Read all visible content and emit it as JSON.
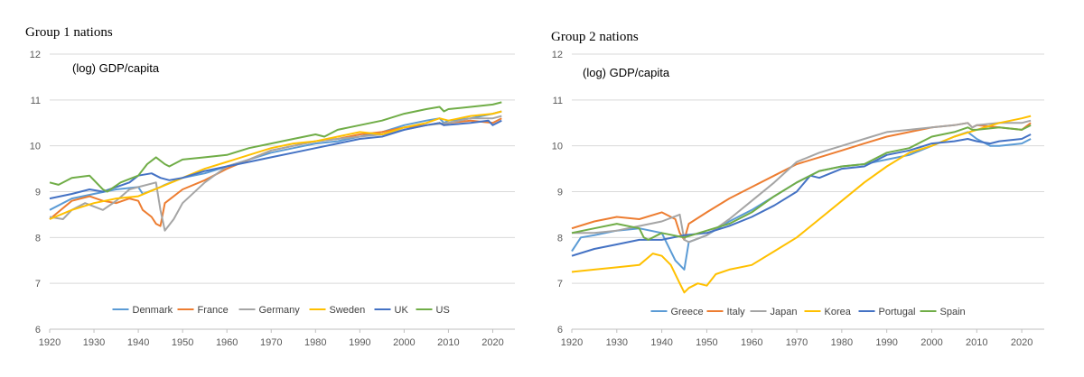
{
  "chart_data": [
    {
      "type": "line",
      "title": "Group 1 nations",
      "inner_label": "(log) GDP/capita",
      "xlabel": "",
      "ylabel": "",
      "xlim": [
        1920,
        2025
      ],
      "ylim": [
        6,
        12
      ],
      "x_ticks": [
        "1920",
        "1930",
        "1940",
        "1950",
        "1960",
        "1970",
        "1980",
        "1990",
        "2000",
        "2010",
        "2020"
      ],
      "y_ticks": [
        "6",
        "7",
        "8",
        "9",
        "10",
        "11",
        "12"
      ],
      "grid": true,
      "legend_position": "bottom",
      "series": [
        {
          "name": "Denmark",
          "color": "#5b9bd5",
          "x": [
            1920,
            1925,
            1930,
            1935,
            1940,
            1941,
            1945,
            1946,
            1950,
            1955,
            1960,
            1965,
            1970,
            1975,
            1980,
            1985,
            1990,
            1995,
            2000,
            2005,
            2008,
            2009,
            2010,
            2015,
            2020,
            2022
          ],
          "y": [
            8.6,
            8.85,
            8.95,
            9.05,
            9.1,
            8.95,
            9.1,
            9.15,
            9.3,
            9.4,
            9.55,
            9.7,
            9.85,
            9.95,
            10.05,
            10.1,
            10.2,
            10.3,
            10.45,
            10.55,
            10.6,
            10.5,
            10.55,
            10.6,
            10.7,
            10.75
          ]
        },
        {
          "name": "France",
          "color": "#ed7d31",
          "x": [
            1920,
            1925,
            1929,
            1932,
            1935,
            1938,
            1940,
            1941,
            1943,
            1944,
            1945,
            1946,
            1950,
            1955,
            1960,
            1965,
            1970,
            1975,
            1980,
            1985,
            1990,
            1995,
            2000,
            2005,
            2008,
            2009,
            2010,
            2015,
            2020,
            2022
          ],
          "y": [
            8.4,
            8.8,
            8.9,
            8.8,
            8.75,
            8.85,
            8.8,
            8.6,
            8.45,
            8.3,
            8.25,
            8.75,
            9.05,
            9.25,
            9.5,
            9.7,
            9.9,
            10.0,
            10.1,
            10.15,
            10.25,
            10.3,
            10.4,
            10.45,
            10.5,
            10.45,
            10.5,
            10.55,
            10.5,
            10.6
          ]
        },
        {
          "name": "Germany",
          "color": "#a5a5a5",
          "x": [
            1920,
            1923,
            1925,
            1928,
            1932,
            1935,
            1938,
            1940,
            1944,
            1945,
            1946,
            1948,
            1950,
            1955,
            1960,
            1965,
            1970,
            1975,
            1980,
            1985,
            1990,
            1995,
            2000,
            2005,
            2010,
            2015,
            2020,
            2022
          ],
          "y": [
            8.45,
            8.4,
            8.6,
            8.75,
            8.6,
            8.8,
            9.05,
            9.1,
            9.2,
            8.6,
            8.15,
            8.4,
            8.75,
            9.2,
            9.55,
            9.7,
            9.9,
            10.0,
            10.1,
            10.15,
            10.2,
            10.25,
            10.35,
            10.45,
            10.5,
            10.6,
            10.6,
            10.65
          ]
        },
        {
          "name": "Sweden",
          "color": "#ffc000",
          "x": [
            1920,
            1925,
            1930,
            1935,
            1940,
            1945,
            1950,
            1955,
            1960,
            1965,
            1970,
            1975,
            1980,
            1985,
            1990,
            1995,
            2000,
            2005,
            2008,
            2010,
            2015,
            2020,
            2022
          ],
          "y": [
            8.4,
            8.6,
            8.75,
            8.85,
            8.9,
            9.1,
            9.3,
            9.5,
            9.65,
            9.8,
            9.95,
            10.05,
            10.1,
            10.2,
            10.3,
            10.25,
            10.4,
            10.5,
            10.6,
            10.55,
            10.65,
            10.7,
            10.75
          ]
        },
        {
          "name": "UK",
          "color": "#4472c4",
          "x": [
            1920,
            1925,
            1929,
            1932,
            1935,
            1938,
            1940,
            1943,
            1945,
            1947,
            1950,
            1955,
            1960,
            1965,
            1970,
            1975,
            1980,
            1985,
            1990,
            1995,
            2000,
            2005,
            2008,
            2009,
            2015,
            2019,
            2020,
            2022
          ],
          "y": [
            8.85,
            8.95,
            9.05,
            9.0,
            9.1,
            9.2,
            9.35,
            9.4,
            9.3,
            9.25,
            9.3,
            9.45,
            9.55,
            9.65,
            9.75,
            9.85,
            9.95,
            10.05,
            10.15,
            10.2,
            10.35,
            10.45,
            10.5,
            10.45,
            10.5,
            10.55,
            10.45,
            10.55
          ]
        },
        {
          "name": "US",
          "color": "#70ad47",
          "x": [
            1920,
            1922,
            1925,
            1929,
            1932,
            1933,
            1936,
            1940,
            1942,
            1944,
            1946,
            1947,
            1950,
            1955,
            1960,
            1965,
            1970,
            1975,
            1980,
            1982,
            1985,
            1990,
            1995,
            2000,
            2005,
            2008,
            2009,
            2010,
            2015,
            2020,
            2022
          ],
          "y": [
            9.2,
            9.15,
            9.3,
            9.35,
            9.05,
            9.0,
            9.2,
            9.35,
            9.6,
            9.75,
            9.6,
            9.55,
            9.7,
            9.75,
            9.8,
            9.95,
            10.05,
            10.15,
            10.25,
            10.2,
            10.35,
            10.45,
            10.55,
            10.7,
            10.8,
            10.85,
            10.75,
            10.8,
            10.85,
            10.9,
            10.95
          ]
        }
      ]
    },
    {
      "type": "line",
      "title": "Group 2 nations",
      "inner_label": "(log) GDP/capita",
      "xlabel": "",
      "ylabel": "",
      "xlim": [
        1920,
        2025
      ],
      "ylim": [
        6,
        12
      ],
      "x_ticks": [
        "1920",
        "1930",
        "1940",
        "1950",
        "1960",
        "1970",
        "1980",
        "1990",
        "2000",
        "2010",
        "2020"
      ],
      "y_ticks": [
        "6",
        "7",
        "8",
        "9",
        "10",
        "11",
        "12"
      ],
      "grid": true,
      "legend_position": "bottom",
      "series": [
        {
          "name": "Greece",
          "color": "#5b9bd5",
          "x": [
            1920,
            1922,
            1925,
            1930,
            1935,
            1940,
            1943,
            1945,
            1946,
            1950,
            1955,
            1960,
            1965,
            1970,
            1975,
            1980,
            1985,
            1990,
            1995,
            2000,
            2005,
            2008,
            2010,
            2013,
            2015,
            2020,
            2022
          ],
          "y": [
            7.7,
            8.0,
            8.05,
            8.15,
            8.2,
            8.1,
            7.5,
            7.3,
            7.9,
            8.05,
            8.35,
            8.6,
            8.9,
            9.2,
            9.45,
            9.55,
            9.6,
            9.7,
            9.8,
            10.0,
            10.2,
            10.3,
            10.15,
            10.0,
            10.0,
            10.05,
            10.15
          ]
        },
        {
          "name": "Italy",
          "color": "#ed7d31",
          "x": [
            1920,
            1925,
            1930,
            1935,
            1940,
            1943,
            1944,
            1945,
            1946,
            1950,
            1955,
            1960,
            1965,
            1970,
            1975,
            1980,
            1985,
            1990,
            1995,
            2000,
            2005,
            2008,
            2009,
            2010,
            2015,
            2020,
            2022
          ],
          "y": [
            8.2,
            8.35,
            8.45,
            8.4,
            8.55,
            8.4,
            8.1,
            7.95,
            8.3,
            8.55,
            8.85,
            9.1,
            9.35,
            9.6,
            9.75,
            9.9,
            10.05,
            10.2,
            10.3,
            10.4,
            10.45,
            10.5,
            10.4,
            10.45,
            10.4,
            10.35,
            10.5
          ]
        },
        {
          "name": "Japan",
          "color": "#a5a5a5",
          "x": [
            1920,
            1925,
            1930,
            1935,
            1940,
            1944,
            1945,
            1946,
            1950,
            1955,
            1960,
            1965,
            1970,
            1975,
            1980,
            1985,
            1990,
            1995,
            2000,
            2005,
            2008,
            2009,
            2010,
            2015,
            2020,
            2022
          ],
          "y": [
            8.1,
            8.1,
            8.15,
            8.25,
            8.35,
            8.5,
            7.95,
            7.9,
            8.05,
            8.4,
            8.8,
            9.2,
            9.65,
            9.85,
            10.0,
            10.15,
            10.3,
            10.35,
            10.4,
            10.45,
            10.5,
            10.4,
            10.45,
            10.5,
            10.5,
            10.55
          ]
        },
        {
          "name": "Korea",
          "color": "#ffc000",
          "x": [
            1920,
            1925,
            1930,
            1935,
            1938,
            1940,
            1942,
            1944,
            1945,
            1946,
            1948,
            1950,
            1952,
            1955,
            1960,
            1965,
            1970,
            1975,
            1980,
            1985,
            1990,
            1995,
            2000,
            2005,
            2010,
            2015,
            2020,
            2022
          ],
          "y": [
            7.25,
            7.3,
            7.35,
            7.4,
            7.65,
            7.6,
            7.4,
            7.0,
            6.8,
            6.9,
            7.0,
            6.95,
            7.2,
            7.3,
            7.4,
            7.7,
            8.0,
            8.4,
            8.8,
            9.2,
            9.55,
            9.85,
            10.0,
            10.2,
            10.35,
            10.5,
            10.6,
            10.65
          ]
        },
        {
          "name": "Portugal",
          "color": "#4472c4",
          "x": [
            1920,
            1925,
            1930,
            1935,
            1940,
            1945,
            1950,
            1955,
            1960,
            1965,
            1970,
            1973,
            1975,
            1980,
            1985,
            1990,
            1995,
            2000,
            2005,
            2008,
            2010,
            2013,
            2015,
            2020,
            2022
          ],
          "y": [
            7.6,
            7.75,
            7.85,
            7.95,
            7.95,
            8.05,
            8.1,
            8.25,
            8.45,
            8.7,
            9.0,
            9.35,
            9.3,
            9.5,
            9.55,
            9.8,
            9.9,
            10.05,
            10.1,
            10.15,
            10.1,
            10.05,
            10.1,
            10.15,
            10.25
          ]
        },
        {
          "name": "Spain",
          "color": "#70ad47",
          "x": [
            1920,
            1925,
            1930,
            1935,
            1936,
            1937,
            1939,
            1940,
            1945,
            1950,
            1955,
            1960,
            1965,
            1970,
            1975,
            1980,
            1985,
            1990,
            1995,
            2000,
            2005,
            2008,
            2009,
            2010,
            2015,
            2020,
            2022
          ],
          "y": [
            8.1,
            8.2,
            8.3,
            8.2,
            8.0,
            7.95,
            8.05,
            8.1,
            8.0,
            8.15,
            8.3,
            8.55,
            8.9,
            9.2,
            9.45,
            9.55,
            9.6,
            9.85,
            9.95,
            10.2,
            10.3,
            10.4,
            10.35,
            10.35,
            10.4,
            10.35,
            10.45
          ]
        }
      ]
    }
  ]
}
